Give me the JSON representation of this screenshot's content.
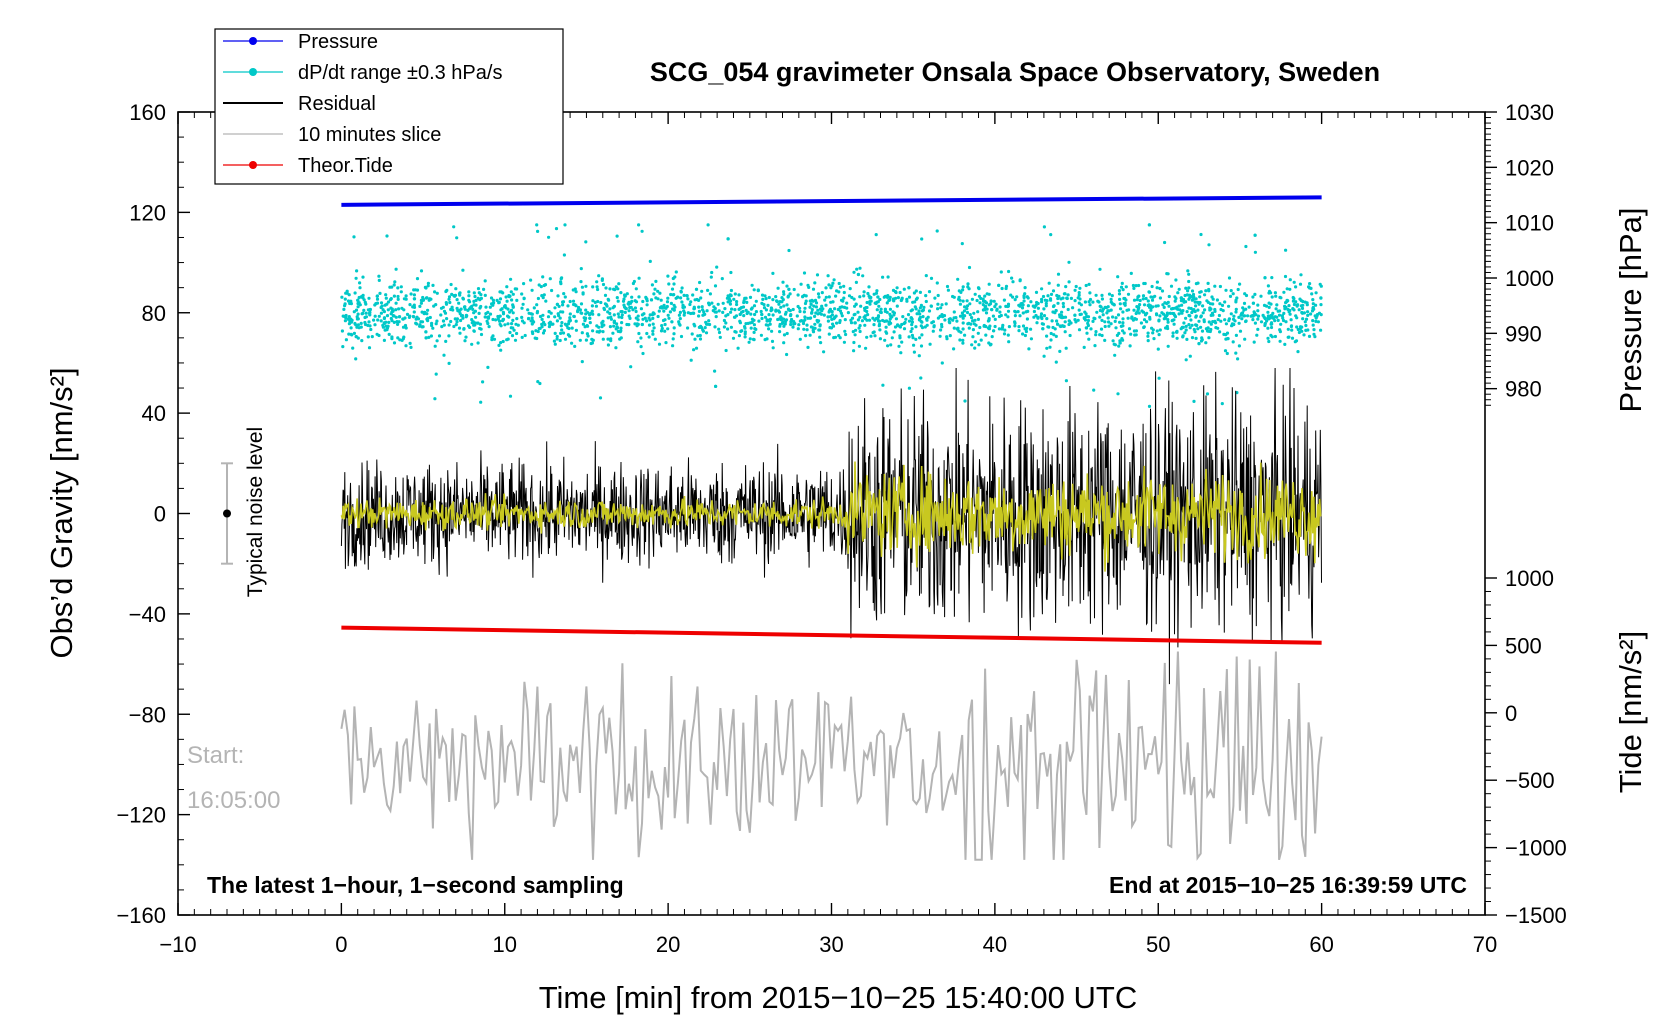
{
  "chart_data": {
    "type": "line",
    "title": "SCG_054 gravimeter Onsala Space Observatory, Sweden",
    "xlabel": "Time [min] from 2015−10−25 15:40:00 UTC",
    "ylabel_left": "Obs’d Gravity [nm/s²]",
    "ylabel_right_top": "Pressure [hPa]",
    "ylabel_right_bottom": "Tide [nm/s²]",
    "xlim": [
      -10,
      70
    ],
    "ylim": [
      -160,
      160
    ],
    "pressure_axis_range": [
      970,
      1030
    ],
    "tide_axis_range": [
      -1500,
      1000
    ],
    "x_ticks": [
      "−10",
      "0",
      "10",
      "20",
      "30",
      "40",
      "50",
      "60",
      "70"
    ],
    "y_ticks": [
      "−160",
      "−120",
      "−80",
      "−40",
      "0",
      "40",
      "80",
      "120",
      "160"
    ],
    "pressure_ticks": [
      "980",
      "990",
      "1000",
      "1010",
      "1020",
      "1030"
    ],
    "tide_ticks": [
      "−1500",
      "−1000",
      "−500",
      "0",
      "500",
      "1000"
    ],
    "annotation_left": "The latest 1−hour, 1−second sampling",
    "annotation_right": "End at 2015−10−25 16:39:59 UTC",
    "start_label": "Start:",
    "start_time": "16:05:00",
    "noise_label": "Typical noise level",
    "noise_level": {
      "x": -7,
      "center": 0,
      "half_range": 20
    },
    "legend": [
      {
        "name": "Pressure",
        "color": "#0000ee"
      },
      {
        "name": "dP/dt range ±0.3 hPa/s",
        "color": "#00c8c8"
      },
      {
        "name": "Residual",
        "color": "#000000"
      },
      {
        "name": "10 minutes slice",
        "color": "#b4b4b4"
      },
      {
        "name": "Theor.Tide",
        "color": "#ee0000"
      }
    ],
    "series": [
      {
        "name": "Pressure",
        "type": "line",
        "unit": "gravity-axis equivalent",
        "x": [
          0,
          60
        ],
        "y": [
          123,
          126
        ]
      },
      {
        "name": "dP/dt range ±0.3 hPa/s",
        "type": "scatter",
        "x_range": [
          0,
          60
        ],
        "center": 80,
        "spread": 12,
        "outlier_range": [
          40,
          115
        ]
      },
      {
        "name": "Residual",
        "type": "line",
        "x_range": [
          0,
          60
        ],
        "noise_segments": [
          {
            "x_start": 0,
            "x_end": 31,
            "amplitude": 17
          },
          {
            "x_start": 31,
            "x_end": 60,
            "amplitude": 38
          }
        ],
        "extremes": [
          -68,
          58
        ]
      },
      {
        "name": "Residual smoothed",
        "type": "line",
        "color": "#c8c820",
        "x_range": [
          0,
          60
        ],
        "noise_segments": [
          {
            "x_start": 0,
            "x_end": 31,
            "amplitude": 5
          },
          {
            "x_start": 31,
            "x_end": 60,
            "amplitude": 14
          }
        ]
      },
      {
        "name": "10 minutes slice",
        "type": "line",
        "x_range": [
          0,
          60
        ],
        "center": -100,
        "amplitude": 20,
        "range": [
          -138,
          -55
        ]
      },
      {
        "name": "Theor.Tide",
        "type": "line",
        "x": [
          0,
          60
        ],
        "y": [
          -45.5,
          -51.5
        ]
      }
    ]
  }
}
